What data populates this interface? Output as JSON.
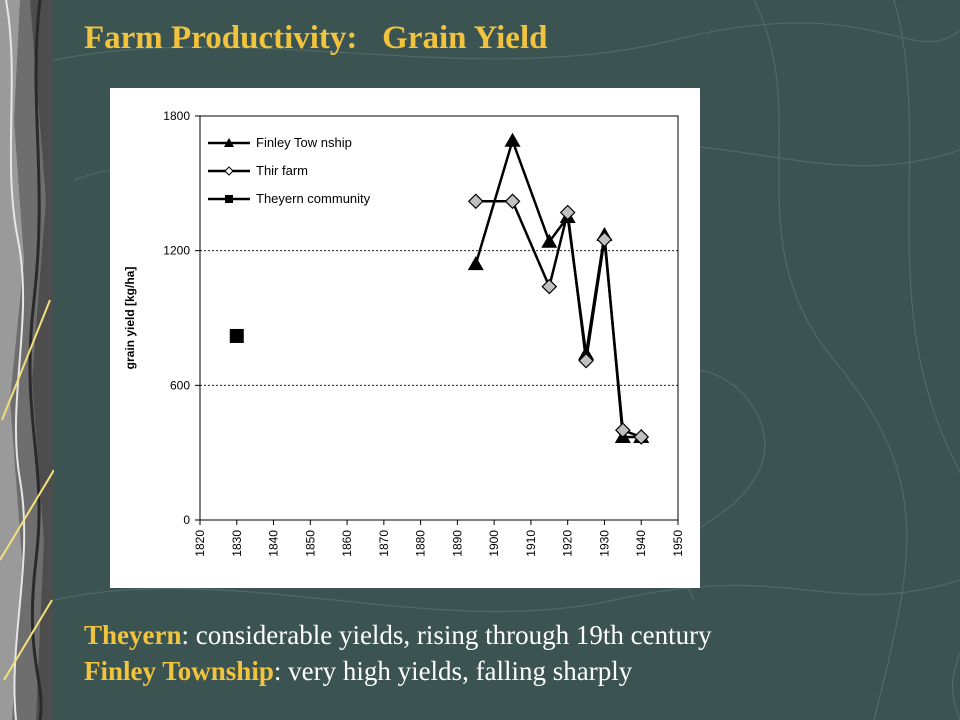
{
  "slide": {
    "title": "Farm Productivity:   Grain Yield",
    "caption_lines": [
      {
        "label": "Theyern",
        "text": ":  considerable yields, rising through 19th century"
      },
      {
        "label": "Finley Township",
        "text": ":  very high yields, falling sharply"
      }
    ]
  },
  "colors": {
    "background": "#3b5452",
    "title": "#f2c33c",
    "caption_text": "#ffffff",
    "chart_bg": "#ffffff",
    "marker_diamond_fill": "#c0c0c0"
  },
  "chart_data": {
    "type": "line",
    "ylabel": "grain yield [kg/ha]",
    "xlim": [
      1820,
      1950
    ],
    "ylim": [
      0,
      1800
    ],
    "x_ticks": [
      1820,
      1830,
      1840,
      1850,
      1860,
      1870,
      1880,
      1890,
      1900,
      1910,
      1920,
      1930,
      1940,
      1950
    ],
    "y_ticks": [
      0,
      600,
      1200,
      1800
    ],
    "grid": "horizontal dashed",
    "legend_position": "top-left",
    "series": [
      {
        "name": "Finley Tow nship",
        "marker": "triangle",
        "points": [
          [
            1895,
            1140
          ],
          [
            1905,
            1690
          ],
          [
            1915,
            1240
          ],
          [
            1920,
            1350
          ],
          [
            1925,
            740
          ],
          [
            1930,
            1270
          ],
          [
            1935,
            370
          ],
          [
            1940,
            370
          ]
        ]
      },
      {
        "name": "Thir farm",
        "marker": "diamond",
        "points": [
          [
            1895,
            1420
          ],
          [
            1905,
            1420
          ],
          [
            1915,
            1040
          ],
          [
            1920,
            1370
          ],
          [
            1925,
            710
          ],
          [
            1930,
            1250
          ],
          [
            1935,
            400
          ],
          [
            1940,
            370
          ]
        ]
      },
      {
        "name": "Theyern community",
        "marker": "square",
        "points": [
          [
            1830,
            820
          ]
        ]
      }
    ]
  }
}
